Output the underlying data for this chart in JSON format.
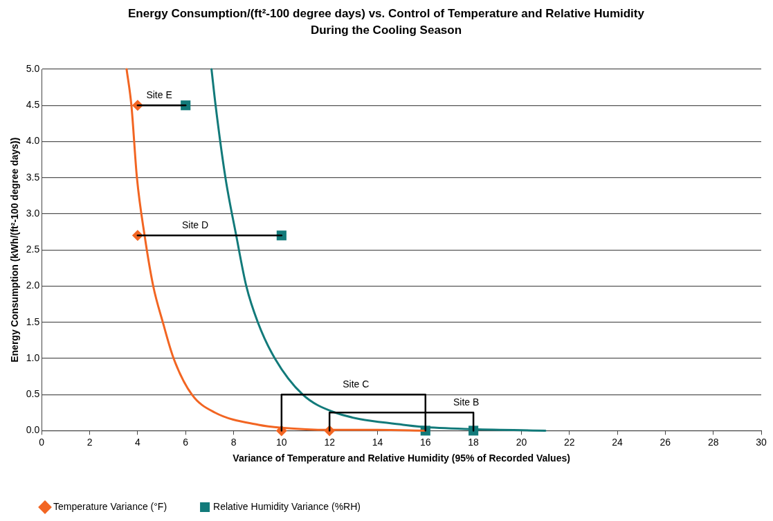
{
  "chart_data": {
    "type": "scatter",
    "title": "Energy Consumption/(ft²-100 degree days) vs. Control of Temperature and Relative Humidity During the Cooling Season",
    "xlabel": "Variance of Temperature and Relative Humidity (95% of Recorded Values)",
    "ylabel": "Energy Consumption (kWh/(ft²-100 degree days))",
    "xlim": [
      0,
      30
    ],
    "xticks": [
      0,
      2,
      4,
      6,
      8,
      10,
      12,
      14,
      16,
      18,
      20,
      22,
      24,
      26,
      28,
      30
    ],
    "ylim": [
      0,
      5
    ],
    "yticks": [
      {
        "value": 0,
        "label": "0.0"
      },
      {
        "value": 0.5,
        "label": "0.5"
      },
      {
        "value": 1,
        "label": "1.0"
      },
      {
        "value": 1.5,
        "label": "1.5"
      },
      {
        "value": 2,
        "label": "2.0"
      },
      {
        "value": 2.5,
        "label": "2.5"
      },
      {
        "value": 3,
        "label": "3.0"
      },
      {
        "value": 3.5,
        "label": "3.5"
      },
      {
        "value": 4,
        "label": "4.0"
      },
      {
        "value": 4.5,
        "label": "4.5"
      },
      {
        "value": 5,
        "label": "5.0"
      }
    ],
    "grid": "y",
    "legend": "bottom left",
    "series": [
      {
        "type": "line",
        "marker": "none",
        "color": "#000000",
        "x": [
          4,
          6
        ],
        "values": [
          4.5,
          4.5
        ]
      },
      {
        "type": "line",
        "marker": "none",
        "color": "#000000",
        "x": [
          4,
          10
        ],
        "values": [
          2.7,
          2.7
        ]
      },
      {
        "type": "line",
        "marker": "none",
        "color": "#000000",
        "x": [
          10,
          10,
          16,
          16
        ],
        "values": [
          0,
          0.5,
          0.5,
          0
        ]
      },
      {
        "type": "line",
        "marker": "none",
        "color": "#000000",
        "x": [
          12,
          12,
          18,
          18
        ],
        "values": [
          0,
          0.25,
          0.25,
          0
        ]
      },
      {
        "type": "line",
        "marker": "none",
        "color": "#f26522",
        "x": [
          3.54,
          3.74,
          3.97,
          4.29,
          4.65,
          5.05,
          5.5,
          6.26,
          7.22,
          9.04,
          10,
          12,
          14,
          16
        ],
        "values": [
          5,
          4.5,
          3.5,
          2.7,
          2,
          1.5,
          1,
          0.5,
          0.25,
          0.08,
          0.04,
          0.01,
          0.01,
          0
        ]
      },
      {
        "type": "line",
        "marker": "none",
        "color": "#127a7a",
        "x": [
          7.08,
          7.25,
          7.66,
          8.11,
          8.53,
          9.01,
          9.72,
          10.88,
          12.15,
          15.07,
          16,
          18,
          21
        ],
        "values": [
          5,
          4.5,
          3.5,
          2.7,
          2,
          1.5,
          1,
          0.5,
          0.26,
          0.08,
          0.05,
          0.02,
          0
        ]
      },
      {
        "name": "Temperature Variance (°F)",
        "marker": "diamond",
        "color": "#f26522",
        "x": [
          4,
          4,
          10,
          12
        ],
        "values": [
          4.5,
          2.7,
          0,
          0
        ]
      },
      {
        "name": "Relative Humidity Variance (%RH)",
        "marker": "square",
        "color": "#127a7a",
        "x": [
          6,
          10,
          16,
          18
        ],
        "values": [
          4.5,
          2.7,
          0,
          0
        ]
      }
    ],
    "annotations": [
      {
        "text": "Site E",
        "x": 4.9,
        "y": 4.5
      },
      {
        "text": "Site D",
        "x": 6.4,
        "y": 2.7
      },
      {
        "text": "Site C",
        "x": 13.1,
        "y": 0.5
      },
      {
        "text": "Site B",
        "x": 17.7,
        "y": 0.25
      }
    ]
  }
}
